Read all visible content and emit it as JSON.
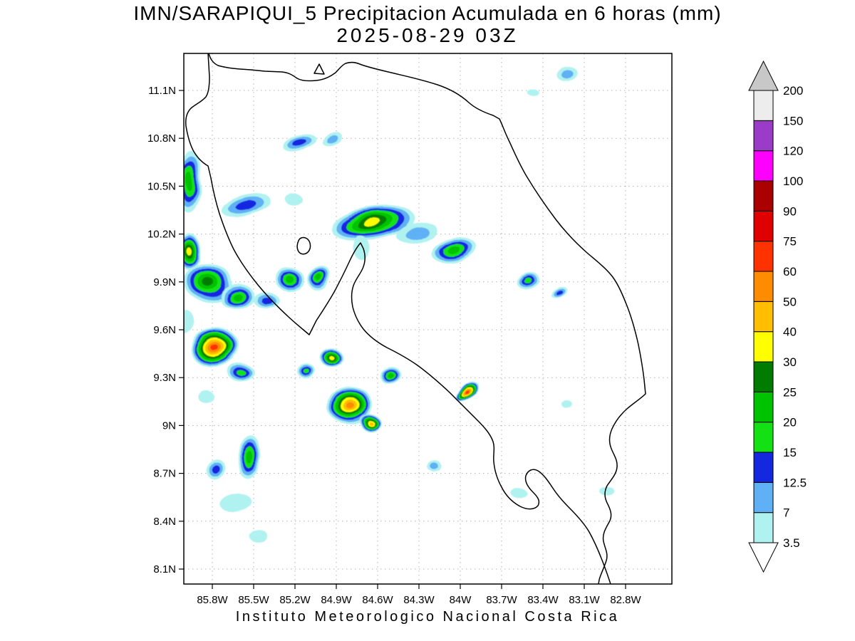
{
  "chart_data": {
    "type": "heatmap",
    "title": "IMN/SARAPIQUI_5 Precipitacion Acumulada en 6 horas (mm)",
    "subtitle": "2025-08-29 03Z",
    "source": "Instituto Meteorologico Nacional Costa Rica",
    "units": "mm",
    "grid": "dotted",
    "xlim_lon": [
      -86.01,
      -82.46
    ],
    "ylim_lat": [
      8.01,
      11.33
    ],
    "lon_ticks": {
      "values": [
        -85.8,
        -85.5,
        -85.2,
        -84.9,
        -84.6,
        -84.3,
        -84.0,
        -83.7,
        -83.4,
        -83.1,
        -82.8
      ],
      "labels": [
        "85.8W",
        "85.5W",
        "85.2W",
        "84.9W",
        "84.6W",
        "84.3W",
        "84W",
        "83.7W",
        "83.4W",
        "83.1W",
        "82.8W"
      ]
    },
    "lat_ticks": {
      "values": [
        11.1,
        10.8,
        10.5,
        10.2,
        9.9,
        9.6,
        9.3,
        9.0,
        8.7,
        8.4,
        8.1
      ],
      "labels": [
        "11.1N",
        "10.8N",
        "10.5N",
        "10.2N",
        "9.9N",
        "9.6N",
        "9.3N",
        "9N",
        "8.7N",
        "8.4N",
        "8.1N"
      ]
    },
    "colorbar": {
      "levels": [
        3.5,
        7,
        12.5,
        15,
        20,
        25,
        30,
        40,
        50,
        60,
        75,
        90,
        100,
        120,
        150,
        200
      ],
      "labels": [
        "3.5",
        "7",
        "12.5",
        "15",
        "20",
        "25",
        "30",
        "40",
        "50",
        "60",
        "75",
        "90",
        "100",
        "120",
        "150",
        "200"
      ],
      "band_colors": [
        "#b0f2f0",
        "#5fb0f5",
        "#1428e0",
        "#14e114",
        "#00c300",
        "#007d00",
        "#ffff00",
        "#ffbe00",
        "#ff8c00",
        "#ff3200",
        "#e10000",
        "#aa0000",
        "#ff00ff",
        "#9b3cc8",
        "#ededed"
      ],
      "over_color": "#c8c8c8",
      "under_color": "#ffffff"
    },
    "cells": [
      {
        "lon": -85.169,
        "lat": 10.774,
        "rx": 0.129,
        "ry": 0.054,
        "rot": -10,
        "max": 15
      },
      {
        "lon": -84.921,
        "lat": 10.787,
        "rx": 0.078,
        "ry": 0.036,
        "rot": -20,
        "max": 12.5
      },
      {
        "lon": -85.966,
        "lat": 10.529,
        "rx": 0.093,
        "ry": 0.201,
        "rot": 0,
        "max": 25
      },
      {
        "lon": -85.557,
        "lat": 10.381,
        "rx": 0.181,
        "ry": 0.063,
        "rot": -15,
        "max": 15
      },
      {
        "lon": -85.21,
        "lat": 10.417,
        "rx": 0.062,
        "ry": 0.036,
        "rot": 0,
        "max": 7
      },
      {
        "lon": -84.631,
        "lat": 10.265,
        "rx": 0.31,
        "ry": 0.107,
        "rot": -8,
        "max": 40
      },
      {
        "lon": -84.316,
        "lat": 10.207,
        "rx": 0.145,
        "ry": 0.058,
        "rot": -15,
        "max": 12.5
      },
      {
        "lon": -84.052,
        "lat": 10.104,
        "rx": 0.166,
        "ry": 0.076,
        "rot": -12,
        "max": 25
      },
      {
        "lon": -83.503,
        "lat": 9.904,
        "rx": 0.083,
        "ry": 0.045,
        "rot": -20,
        "max": 20
      },
      {
        "lon": -83.296,
        "lat": 9.846,
        "rx": 0.062,
        "ry": 0.031,
        "rot": -25,
        "max": 15
      },
      {
        "lon": -85.976,
        "lat": 10.096,
        "rx": 0.083,
        "ry": 0.116,
        "rot": 0,
        "max": 40
      },
      {
        "lon": -85.831,
        "lat": 9.899,
        "rx": 0.176,
        "ry": 0.125,
        "rot": 10,
        "max": 30
      },
      {
        "lon": -85.624,
        "lat": 9.81,
        "rx": 0.124,
        "ry": 0.076,
        "rot": -10,
        "max": 25
      },
      {
        "lon": -85.417,
        "lat": 9.792,
        "rx": 0.093,
        "ry": 0.049,
        "rot": 0,
        "max": 15
      },
      {
        "lon": -85.241,
        "lat": 9.917,
        "rx": 0.114,
        "ry": 0.076,
        "rot": 15,
        "max": 25
      },
      {
        "lon": -85.024,
        "lat": 9.926,
        "rx": 0.083,
        "ry": 0.089,
        "rot": 0,
        "max": 25
      },
      {
        "lon": -85.779,
        "lat": 9.484,
        "rx": 0.176,
        "ry": 0.125,
        "rot": -10,
        "max": 75
      },
      {
        "lon": -85.593,
        "lat": 9.332,
        "rx": 0.093,
        "ry": 0.058,
        "rot": 0,
        "max": 20
      },
      {
        "lon": -85.117,
        "lat": 9.341,
        "rx": 0.067,
        "ry": 0.045,
        "rot": 0,
        "max": 20
      },
      {
        "lon": -84.931,
        "lat": 9.421,
        "rx": 0.083,
        "ry": 0.058,
        "rot": 0,
        "max": 40
      },
      {
        "lon": -84.801,
        "lat": 9.127,
        "rx": 0.171,
        "ry": 0.125,
        "rot": 10,
        "max": 60
      },
      {
        "lon": -84.646,
        "lat": 9.011,
        "rx": 0.078,
        "ry": 0.049,
        "rot": 0,
        "max": 50
      },
      {
        "lon": -84.507,
        "lat": 9.314,
        "rx": 0.078,
        "ry": 0.049,
        "rot": -15,
        "max": 25
      },
      {
        "lon": -83.948,
        "lat": 9.207,
        "rx": 0.103,
        "ry": 0.04,
        "rot": -28,
        "max": 75
      },
      {
        "lon": -84.176,
        "lat": 8.734,
        "rx": 0.052,
        "ry": 0.036,
        "rot": 0,
        "max": 12.5
      },
      {
        "lon": -85.526,
        "lat": 8.796,
        "rx": 0.083,
        "ry": 0.134,
        "rot": 8,
        "max": 25
      },
      {
        "lon": -85.774,
        "lat": 8.725,
        "rx": 0.067,
        "ry": 0.071,
        "rot": 0,
        "max": 15
      },
      {
        "lon": -85.629,
        "lat": 8.515,
        "rx": 0.114,
        "ry": 0.054,
        "rot": -10,
        "max": 7
      },
      {
        "lon": -85.469,
        "lat": 8.31,
        "rx": 0.067,
        "ry": 0.04,
        "rot": 0,
        "max": 7
      },
      {
        "lon": -83.576,
        "lat": 8.577,
        "rx": 0.057,
        "ry": 0.031,
        "rot": 0,
        "max": 7
      },
      {
        "lon": -83.229,
        "lat": 9.136,
        "rx": 0.041,
        "ry": 0.022,
        "rot": 0,
        "max": 7
      },
      {
        "lon": -82.934,
        "lat": 8.587,
        "rx": 0.052,
        "ry": 0.031,
        "rot": 0,
        "max": 7
      },
      {
        "lon": -83.229,
        "lat": 11.207,
        "rx": 0.083,
        "ry": 0.036,
        "rot": -5,
        "max": 12.5
      },
      {
        "lon": -83.472,
        "lat": 11.087,
        "rx": 0.041,
        "ry": 0.022,
        "rot": 0,
        "max": 7
      },
      {
        "lon": -85.997,
        "lat": 9.649,
        "rx": 0.062,
        "ry": 0.08,
        "rot": 0,
        "max": 7
      },
      {
        "lon": -85.852,
        "lat": 9.185,
        "rx": 0.057,
        "ry": 0.04,
        "rot": 0,
        "max": 7
      },
      {
        "lon": -84.714,
        "lat": 10.109,
        "rx": 0.062,
        "ry": 0.071,
        "rot": 0,
        "max": 7
      }
    ]
  },
  "basemap": {
    "stroke": "#000000",
    "paths": [
      "M 293 75 C 295 82 298 88 306 92 C 320 96 335 97 352 98 L 372 100 L 396 101 C 405 102 410 105 417 110 C 424 114 434 114 444 113 C 455 112 463 108 471 102 C 476 97 479 92 485 89 C 491 87 498 87 505 90 C 515 94 528 97 545 101 C 565 106 590 111 614 119 C 632 125 646 133 658 144 C 668 153 680 158 692 162 L 701 167 C 705 175 709 187 715 199 C 722 214 729 231 740 249 C 752 269 765 288 780 308 C 793 325 807 340 824 355 C 838 367 851 377 860 389 C 868 400 874 414 881 432 C 887 448 892 466 896 484 C 899 499 902 516 904 533 L 906 553 C 899 560 889 566 880 574 C 871 582 864 591 859 602 C 855 611 854 620 858 630 C 862 640 867 646 866 656 C 865 666 858 673 852 682 C 848 690 848 699 853 708 C 857 716 860 724 855 733 C 850 742 845 750 847 760 C 849 770 854 777 851 787 C 848 797 843 806 841 814 L 840 820",
      "M 857 820 C 853 808 849 796 844 784 C 839 771 833 758 827 747 C 820 735 810 724 799 713 C 790 704 782 695 775 684 C 769 675 763 666 755 661 C 748 657 741 660 738 668 C 736 676 741 684 748 691 C 754 697 759 703 755 710 C 750 716 740 716 730 711 C 719 705 710 696 704 684 C 698 673 694 661 693 648 C 692 638 695 630 692 620 C 688 609 680 600 670 590 C 658 578 645 565 631 551 C 616 537 601 524 586 513 C 572 503 557 495 543 488 C 530 481 519 473 510 462 C 503 453 498 443 495 431 C 493 421 493 410 496 401 C 499 392 505 386 509 377 C 513 368 513 358 510 349 L 506 341 C 500 348 495 357 490 368 C 484 381 477 395 469 410 C 461 424 452 438 444 450 L 434 470 C 427 464 417 456 405 445 C 391 432 376 417 362 400 C 349 384 337 367 328 350 C 320 334 314 318 308 300 C 303 284 299 267 296 250 L 292 233 C 285 229 277 222 271 211 C 266 201 263 189 261 177 C 260 167 262 158 268 152 C 275 146 283 143 289 136 C 293 130 294 120 294 108 L 292 75",
      "M 419 338 C 421 333 427 332 432 336 C 436 340 437 348 433 353 C 429 358 422 358 419 353 C 416 348 417 342 419 338 Z",
      "M 448 90 L 455 104 L 441 103 Z"
    ]
  }
}
